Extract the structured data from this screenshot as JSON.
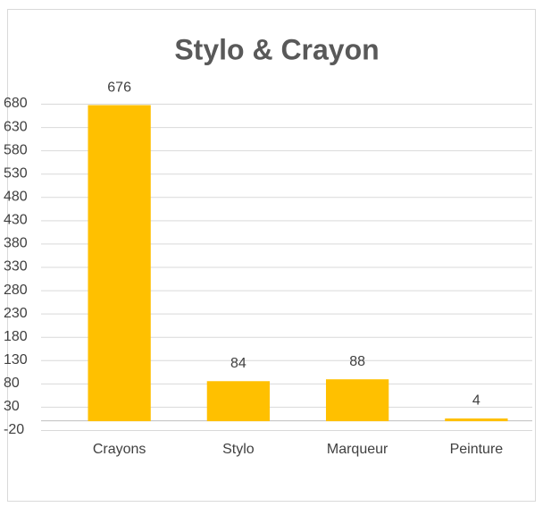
{
  "chart_data": {
    "type": "bar",
    "title": "Stylo & Crayon",
    "categories": [
      "Crayons",
      "Stylo",
      "Marqueur",
      "Peinture"
    ],
    "values": [
      676,
      84,
      88,
      4
    ],
    "color": "#ffc000",
    "ylim": [
      -20,
      680
    ],
    "yticks": [
      -20,
      30,
      80,
      130,
      180,
      230,
      280,
      330,
      380,
      430,
      480,
      530,
      580,
      630,
      680
    ],
    "grid": true,
    "data_labels": true
  }
}
